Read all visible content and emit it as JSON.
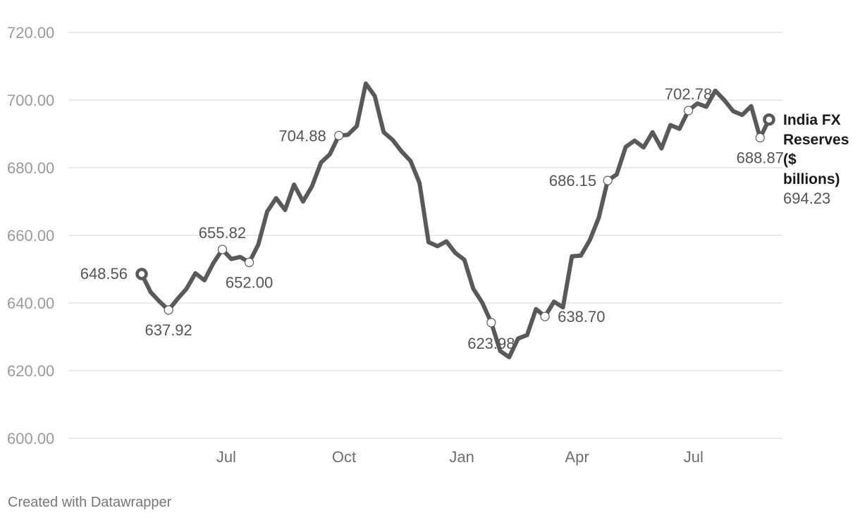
{
  "footer": {
    "credit": "Created with Datawrapper"
  },
  "chart_data": {
    "type": "line",
    "title": "",
    "xlabel": "",
    "ylabel": "",
    "ylim": [
      600,
      720
    ],
    "y_ticks": [
      "720.00",
      "700.00",
      "680.00",
      "660.00",
      "640.00",
      "620.00",
      "600.00"
    ],
    "x_ticks": [
      {
        "label": "Jul",
        "x": "2024-07-01"
      },
      {
        "label": "Oct",
        "x": "2024-10-01"
      },
      {
        "label": "Jan",
        "x": "2025-01-01"
      },
      {
        "label": "Apr",
        "x": "2025-04-01"
      },
      {
        "label": "Jul",
        "x": "2025-07-01"
      }
    ],
    "grid": true,
    "series": [
      {
        "name": "India FX Reserves ($ billions)",
        "last_value_label": "694.23",
        "color": "#595959",
        "x": [
          "2024-04-26",
          "2024-05-03",
          "2024-05-10",
          "2024-05-17",
          "2024-05-24",
          "2024-05-31",
          "2024-06-07",
          "2024-06-14",
          "2024-06-21",
          "2024-06-28",
          "2024-07-05",
          "2024-07-12",
          "2024-07-19",
          "2024-07-26",
          "2024-08-02",
          "2024-08-09",
          "2024-08-16",
          "2024-08-23",
          "2024-08-30",
          "2024-09-06",
          "2024-09-13",
          "2024-09-20",
          "2024-09-27",
          "2024-10-04",
          "2024-10-11",
          "2024-10-18",
          "2024-10-25",
          "2024-11-01",
          "2024-11-08",
          "2024-11-15",
          "2024-11-22",
          "2024-11-29",
          "2024-12-06",
          "2024-12-13",
          "2024-12-20",
          "2024-12-27",
          "2025-01-03",
          "2025-01-10",
          "2025-01-17",
          "2025-01-24",
          "2025-01-31",
          "2025-02-07",
          "2025-02-14",
          "2025-02-21",
          "2025-02-28",
          "2025-03-07",
          "2025-03-14",
          "2025-03-21",
          "2025-03-28",
          "2025-04-04",
          "2025-04-11",
          "2025-04-18",
          "2025-04-25",
          "2025-05-02",
          "2025-05-09",
          "2025-05-16",
          "2025-05-23",
          "2025-05-30",
          "2025-06-06",
          "2025-06-13",
          "2025-06-20",
          "2025-06-27",
          "2025-07-04",
          "2025-07-11",
          "2025-07-18",
          "2025-07-25",
          "2025-08-01",
          "2025-08-08",
          "2025-08-15",
          "2025-08-22",
          "2025-08-29"
        ],
        "values": [
          648.56,
          643.2,
          640.4,
          637.92,
          641.2,
          644.2,
          648.8,
          646.7,
          651.8,
          655.82,
          653.0,
          653.6,
          652.0,
          657.2,
          667.0,
          671.0,
          667.5,
          675.0,
          670.0,
          674.5,
          681.5,
          684.0,
          689.5,
          689.7,
          692.3,
          704.88,
          701.2,
          690.5,
          688.2,
          684.8,
          682.0,
          675.5,
          658.0,
          656.8,
          658.2,
          654.8,
          652.8,
          644.2,
          640.1,
          634.2,
          625.8,
          623.98,
          629.5,
          630.5,
          638.2,
          636.0,
          640.4,
          638.7,
          653.8,
          654.0,
          658.6,
          665.2,
          676.2,
          678.0,
          686.15,
          688.0,
          686.0,
          690.5,
          685.7,
          692.6,
          691.5,
          696.9,
          699.0,
          698.0,
          702.78,
          700.0,
          696.7,
          695.6,
          698.2,
          688.87,
          694.23
        ]
      }
    ],
    "annotations": [
      {
        "x": "2024-05-17",
        "value_label": "637.92"
      },
      {
        "x": "2024-06-28",
        "value_label": "655.82"
      },
      {
        "x": "2024-07-19",
        "value_label": "652.00"
      },
      {
        "x": "2024-09-27",
        "value_label": "704.88"
      },
      {
        "x": "2025-01-24",
        "value_label": "623.98"
      },
      {
        "x": "2025-03-07",
        "value_label": "638.70"
      },
      {
        "x": "2025-04-25",
        "value_label": "686.15"
      },
      {
        "x": "2025-06-27",
        "value_label": "702.78"
      },
      {
        "x": "2025-08-22",
        "value_label": "688.87"
      }
    ],
    "start_label": "648.56"
  }
}
